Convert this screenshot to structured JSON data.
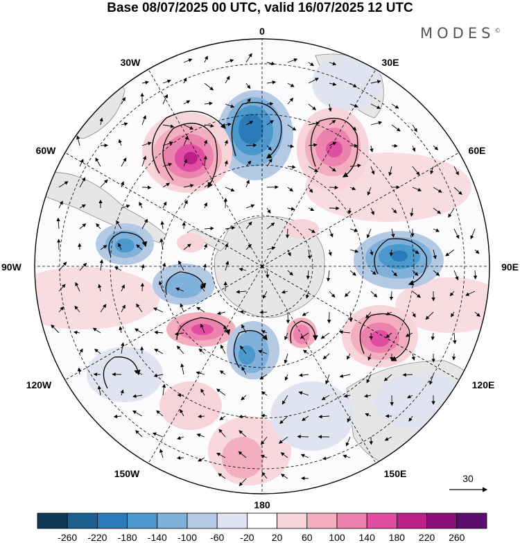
{
  "title": "Base 08/07/2025 00 UTC, valid 16/07/2025 12 UTC",
  "brand": "MODES",
  "brand_mark": "©",
  "longitude_labels": {
    "top": "0",
    "bottom": "180",
    "left": "90W",
    "right": "90E",
    "nw1": "30W",
    "nw2": "60W",
    "ne1": "30E",
    "ne2": "60E",
    "sw1": "120W",
    "sw2": "150W",
    "se1": "120E",
    "se2": "150E"
  },
  "vector_reference": "30",
  "colorbar": {
    "labels": [
      "-260",
      "-220",
      "-180",
      "-140",
      "-100",
      "-60",
      "-20",
      "20",
      "60",
      "100",
      "140",
      "180",
      "220",
      "260"
    ],
    "colors": [
      "#0e3a57",
      "#1b5f8e",
      "#2b7bb8",
      "#4b98cc",
      "#7fb1da",
      "#b4c9e4",
      "#e1e3f0",
      "#ffffff",
      "#f7d4d9",
      "#f3aebf",
      "#ec83ae",
      "#df4ea0",
      "#bb1f8a",
      "#8a1079",
      "#5c0d6d"
    ]
  },
  "colors": {
    "land": "#e6e6e6",
    "coast": "#8a8a8a",
    "grid": "#000000"
  }
}
